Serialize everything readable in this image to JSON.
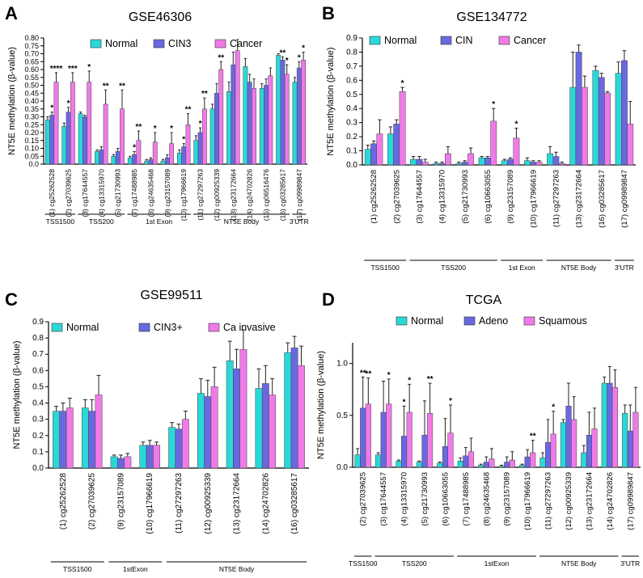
{
  "chart_data": [
    {
      "type": "bar",
      "panel": "A",
      "title": "GSE46306",
      "ylabel": "NT5E methylation (β-value)",
      "xlabel": "",
      "ylim": [
        0,
        0.8
      ],
      "yticks": [
        0.0,
        0.05,
        0.1,
        0.15,
        0.2,
        0.25,
        0.3,
        0.35,
        0.4,
        0.45,
        0.5,
        0.55,
        0.6,
        0.65,
        0.7,
        0.75,
        0.8
      ],
      "ytick_labels": [
        "0.0",
        "0.05",
        "0.10",
        "0.15",
        "0.20",
        "0.25",
        "0.30",
        "0.35",
        "0.40",
        "0.45",
        "0.50",
        "0.55",
        "0.60",
        "0.65",
        "0.70",
        "0.75",
        "0.80"
      ],
      "legend": [
        "Normal",
        "CIN3",
        "Cancer"
      ],
      "categories": [
        "(1) cg25262528",
        "(2) cg27039625",
        "(3) cg17644557",
        "(4) cg13315970",
        "(5) cg21730993",
        "(7) cg17488985",
        "(8) cg24635468",
        "(9) cg23157089",
        "(10) cg17966619",
        "(11) cg27297263",
        "(12) cg00925339",
        "(13) cg23172664",
        "(14) cg24702826",
        "(15) cg06516476",
        "(16) cg03285617",
        "(17) cg09989847"
      ],
      "series": [
        {
          "name": "Normal",
          "values": [
            0.28,
            0.24,
            0.32,
            0.08,
            0.05,
            0.04,
            0.02,
            0.02,
            0.07,
            0.15,
            0.35,
            0.46,
            0.62,
            0.48,
            0.69,
            0.52
          ],
          "errors": [
            0.02,
            0.02,
            0.01,
            0.01,
            0.01,
            0.01,
            0.01,
            0.01,
            0.02,
            0.03,
            0.03,
            0.06,
            0.05,
            0.03,
            0.01,
            0.03
          ]
        },
        {
          "name": "CIN3",
          "values": [
            0.31,
            0.33,
            0.3,
            0.09,
            0.08,
            0.06,
            0.03,
            0.04,
            0.11,
            0.2,
            0.45,
            0.63,
            0.52,
            0.5,
            0.66,
            0.61
          ],
          "errors": [
            0.02,
            0.03,
            0.01,
            0.02,
            0.02,
            0.02,
            0.01,
            0.02,
            0.02,
            0.03,
            0.06,
            0.08,
            0.05,
            0.04,
            0.02,
            0.04
          ]
        },
        {
          "name": "Cancer",
          "values": [
            0.52,
            0.52,
            0.52,
            0.38,
            0.35,
            0.15,
            0.14,
            0.13,
            0.25,
            0.35,
            0.6,
            0.72,
            0.48,
            0.56,
            0.57,
            0.66
          ],
          "errors": [
            0.06,
            0.06,
            0.07,
            0.09,
            0.12,
            0.06,
            0.06,
            0.07,
            0.07,
            0.07,
            0.05,
            0.07,
            0.06,
            0.05,
            0.06,
            0.05
          ]
        }
      ],
      "annotations": [
        {
          "category": 0,
          "series": 1,
          "text": "*"
        },
        {
          "category": 0,
          "series": 2,
          "text": "****"
        },
        {
          "category": 1,
          "series": 1,
          "text": "*"
        },
        {
          "category": 1,
          "series": 2,
          "text": "***"
        },
        {
          "category": 2,
          "series": 2,
          "text": "*"
        },
        {
          "category": 3,
          "series": 2,
          "text": "**"
        },
        {
          "category": 4,
          "series": 2,
          "text": "**"
        },
        {
          "category": 5,
          "series": 1,
          "text": "*"
        },
        {
          "category": 5,
          "series": 2,
          "text": "**"
        },
        {
          "category": 6,
          "series": 2,
          "text": "*"
        },
        {
          "category": 7,
          "series": 2,
          "text": "*"
        },
        {
          "category": 8,
          "series": 1,
          "text": "*"
        },
        {
          "category": 8,
          "series": 2,
          "text": "**"
        },
        {
          "category": 9,
          "series": 1,
          "text": "*"
        },
        {
          "category": 9,
          "series": 2,
          "text": "**"
        },
        {
          "category": 10,
          "series": 2,
          "text": "**"
        },
        {
          "category": 14,
          "series": 1,
          "text": "**"
        },
        {
          "category": 14,
          "series": 2,
          "text": "*"
        },
        {
          "category": 15,
          "series": 1,
          "text": "*"
        },
        {
          "category": 15,
          "series": 2,
          "text": "*"
        }
      ],
      "regions": [
        {
          "label": "TSS1500",
          "from": 0,
          "to": 1
        },
        {
          "label": "TSS200",
          "from": 2,
          "to": 4
        },
        {
          "label": "1st Exon",
          "from": 5,
          "to": 8
        },
        {
          "label": "NT5E Body",
          "from": 9,
          "to": 14
        },
        {
          "label": "3'UTR",
          "from": 15,
          "to": 15
        }
      ]
    },
    {
      "type": "bar",
      "panel": "B",
      "title": "GSE134772",
      "ylabel": "NT5E methylation (β-value)",
      "xlabel": "",
      "ylim": [
        0,
        0.9
      ],
      "yticks": [
        0.0,
        0.1,
        0.2,
        0.3,
        0.4,
        0.5,
        0.6,
        0.7,
        0.8,
        0.9
      ],
      "ytick_labels": [
        "0.0",
        "0.1",
        "0.2",
        "0.3",
        "0.4",
        "0.5",
        "0.6",
        "0.7",
        "0.8",
        "0.9"
      ],
      "legend": [
        "Normal",
        "CIN",
        "Cancer"
      ],
      "categories": [
        "(1) cg25262528",
        "(2) cg27039625",
        "(3) cg17644557",
        "(4) cg13315970",
        "(5) cg21730993",
        "(6) cg10663055",
        "(9) cg23157089",
        "(10) cg17966619",
        "(11) cg27297263",
        "(13) cg23172664",
        "(16) cg03285617",
        "(17) cg09989847"
      ],
      "series": [
        {
          "name": "Normal",
          "values": [
            0.11,
            0.22,
            0.04,
            0.01,
            0.01,
            0.05,
            0.03,
            0.03,
            0.08,
            0.55,
            0.67,
            0.65
          ],
          "errors": [
            0.03,
            0.05,
            0.02,
            0.01,
            0.01,
            0.01,
            0.01,
            0.02,
            0.05,
            0.25,
            0.03,
            0.08
          ]
        },
        {
          "name": "CIN",
          "values": [
            0.15,
            0.29,
            0.04,
            0.01,
            0.02,
            0.05,
            0.04,
            0.02,
            0.06,
            0.8,
            0.62,
            0.74
          ],
          "errors": [
            0.02,
            0.03,
            0.02,
            0.01,
            0.01,
            0.01,
            0.01,
            0.01,
            0.03,
            0.05,
            0.03,
            0.07
          ]
        },
        {
          "name": "Cancer",
          "values": [
            0.22,
            0.52,
            0.02,
            0.08,
            0.08,
            0.31,
            0.19,
            0.02,
            0.01,
            0.55,
            0.51,
            0.29
          ],
          "errors": [
            0.1,
            0.03,
            0.02,
            0.05,
            0.04,
            0.09,
            0.07,
            0.01,
            0.01,
            0.08,
            0.01,
            0.16
          ]
        }
      ],
      "annotations": [
        {
          "category": 1,
          "series": 2,
          "text": "*"
        },
        {
          "category": 5,
          "series": 2,
          "text": "*"
        },
        {
          "category": 6,
          "series": 2,
          "text": "*"
        }
      ],
      "regions": [
        {
          "label": "TSS1500",
          "from": 0,
          "to": 1
        },
        {
          "label": "TSS200",
          "from": 2,
          "to": 5
        },
        {
          "label": "1st Exon",
          "from": 6,
          "to": 7
        },
        {
          "label": "NT5E Body",
          "from": 8,
          "to": 10
        },
        {
          "label": "3'UTR",
          "from": 11,
          "to": 11
        }
      ]
    },
    {
      "type": "bar",
      "panel": "C",
      "title": "GSE99511",
      "ylabel": "NT5E methylation (β-value)",
      "xlabel": "",
      "ylim": [
        0,
        0.9
      ],
      "yticks": [
        0.0,
        0.1,
        0.2,
        0.3,
        0.4,
        0.5,
        0.6,
        0.7,
        0.8,
        0.9
      ],
      "ytick_labels": [
        "0.0",
        "0.1",
        "0.2",
        "0.3",
        "0.4",
        "0.5",
        "0.6",
        "0.7",
        "0.8",
        "0.9"
      ],
      "legend": [
        "Normal",
        "CIN3+",
        "Ca invasive"
      ],
      "categories": [
        "(1) cg25262528",
        "(2) cg27039625",
        "(9) cg23157089",
        "(10) cg17966619",
        "(11) cg27297263",
        "(12) cg00925339",
        "(13) cg23172664",
        "(14) cg24702826",
        "(16) cg03285617"
      ],
      "series": [
        {
          "name": "Normal",
          "values": [
            0.35,
            0.37,
            0.07,
            0.14,
            0.25,
            0.46,
            0.66,
            0.49,
            0.71
          ],
          "errors": [
            0.03,
            0.05,
            0.01,
            0.02,
            0.03,
            0.09,
            0.12,
            0.12,
            0.06
          ]
        },
        {
          "name": "CIN3+",
          "values": [
            0.35,
            0.35,
            0.06,
            0.14,
            0.24,
            0.44,
            0.61,
            0.52,
            0.74
          ],
          "errors": [
            0.05,
            0.07,
            0.02,
            0.03,
            0.03,
            0.1,
            0.12,
            0.11,
            0.07
          ]
        },
        {
          "name": "Ca invasive",
          "values": [
            0.37,
            0.45,
            0.07,
            0.14,
            0.3,
            0.5,
            0.73,
            0.45,
            0.63
          ],
          "errors": [
            0.06,
            0.12,
            0.02,
            0.02,
            0.05,
            0.12,
            0.12,
            0.1,
            0.12
          ]
        }
      ],
      "annotations": [],
      "regions": [
        {
          "label": "TSS1500",
          "from": 0,
          "to": 1
        },
        {
          "label": "1stExon",
          "from": 2,
          "to": 3
        },
        {
          "label": "NT5E Body",
          "from": 4,
          "to": 8
        }
      ]
    },
    {
      "type": "bar",
      "panel": "D",
      "title": "TCGA",
      "ylabel": "NT5E methylation (β-value)",
      "xlabel": "",
      "ylim": [
        0,
        1.2
      ],
      "yticks": [
        0.0,
        0.5,
        1.0
      ],
      "ytick_labels": [
        "0.0",
        "0.5",
        "1.0"
      ],
      "legend": [
        "Normal",
        "Adeno",
        "Squamous"
      ],
      "categories": [
        "(2) cg27039625",
        "(3) cg17644557",
        "(4) cg13315970",
        "(5) cg21730993",
        "(6) cg10663055",
        "(7) cg17488985",
        "(8) cg24635468",
        "(9) cg23157089",
        "(10) cg17966619",
        "(11) cg27297263",
        "(12) cg00925339",
        "(13) cg23172664",
        "(14) cg24702826",
        "(17) cg09989847"
      ],
      "series": [
        {
          "name": "Normal",
          "values": [
            0.12,
            0.12,
            0.06,
            0.05,
            0.04,
            0.06,
            0.02,
            0.01,
            0.02,
            0.09,
            0.43,
            0.14,
            0.81,
            0.52
          ],
          "errors": [
            0.06,
            0.02,
            0.01,
            0.01,
            0.01,
            0.03,
            0.01,
            0.01,
            0.01,
            0.05,
            0.03,
            0.07,
            0.06,
            0.08
          ]
        },
        {
          "name": "Adeno",
          "values": [
            0.57,
            0.53,
            0.3,
            0.31,
            0.2,
            0.11,
            0.05,
            0.05,
            0.1,
            0.24,
            0.59,
            0.31,
            0.81,
            0.35
          ],
          "errors": [
            0.3,
            0.3,
            0.29,
            0.33,
            0.27,
            0.08,
            0.05,
            0.05,
            0.07,
            0.22,
            0.22,
            0.22,
            0.16,
            0.25
          ]
        },
        {
          "name": "Squamous",
          "values": [
            0.61,
            0.61,
            0.53,
            0.52,
            0.33,
            0.15,
            0.08,
            0.07,
            0.14,
            0.32,
            0.46,
            0.37,
            0.77,
            0.53
          ],
          "errors": [
            0.25,
            0.24,
            0.27,
            0.29,
            0.27,
            0.13,
            0.1,
            0.08,
            0.12,
            0.22,
            0.22,
            0.2,
            0.17,
            0.24
          ]
        }
      ],
      "annotations": [
        {
          "category": 0,
          "series": 1,
          "text": "**"
        },
        {
          "category": 0,
          "series": 2,
          "text": "**"
        },
        {
          "category": 1,
          "series": 2,
          "text": "*"
        },
        {
          "category": 2,
          "series": 1,
          "text": "*"
        },
        {
          "category": 2,
          "series": 2,
          "text": "*"
        },
        {
          "category": 3,
          "series": 2,
          "text": "**"
        },
        {
          "category": 4,
          "series": 2,
          "text": "*"
        },
        {
          "category": 8,
          "series": 2,
          "text": "**"
        },
        {
          "category": 9,
          "series": 2,
          "text": "*"
        }
      ],
      "regions": [
        {
          "label": "TSS1500",
          "from": 0,
          "to": 0
        },
        {
          "label": "TSS200",
          "from": 1,
          "to": 4
        },
        {
          "label": "1stExon",
          "from": 5,
          "to": 8
        },
        {
          "label": "NT5E Body",
          "from": 9,
          "to": 12
        },
        {
          "label": "3'UTR",
          "from": 13,
          "to": 13
        }
      ]
    }
  ],
  "colors": {
    "series": [
      "#2ad8d8",
      "#6a68e0",
      "#f07ae8"
    ],
    "axis": "#000000"
  }
}
